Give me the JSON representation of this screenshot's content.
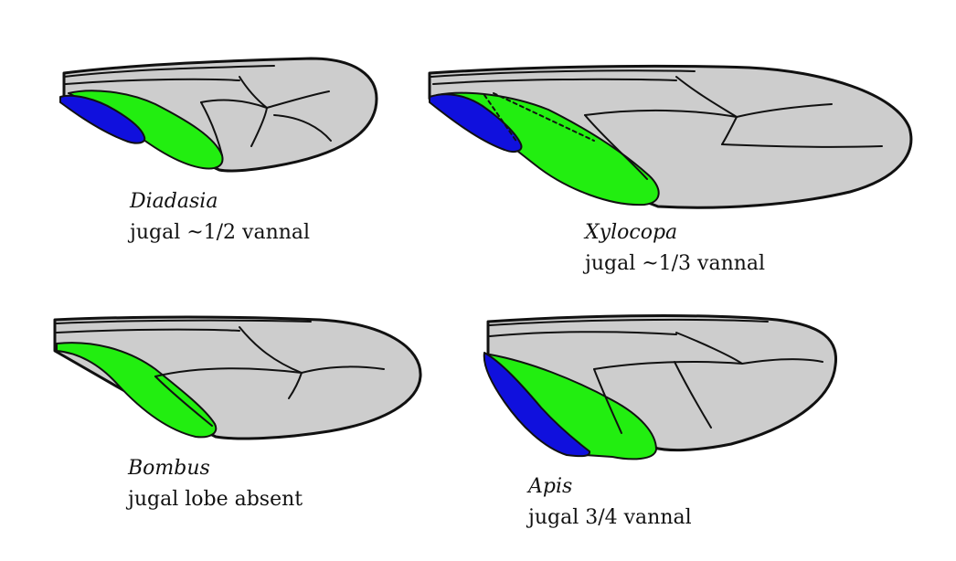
{
  "colors": {
    "wing_fill": "#cdcdcd",
    "outline": "#111111",
    "vannal_lobe": "#22ee10",
    "jugal_lobe": "#1010dd"
  },
  "wings": [
    {
      "genus": "Diadasia",
      "description": "jugal ~1/2 vannal"
    },
    {
      "genus": "Xylocopa",
      "description": "jugal ~1/3 vannal"
    },
    {
      "genus": "Bombus",
      "description": "jugal lobe absent"
    },
    {
      "genus": "Apis",
      "description": "jugal 3/4 vannal"
    }
  ]
}
